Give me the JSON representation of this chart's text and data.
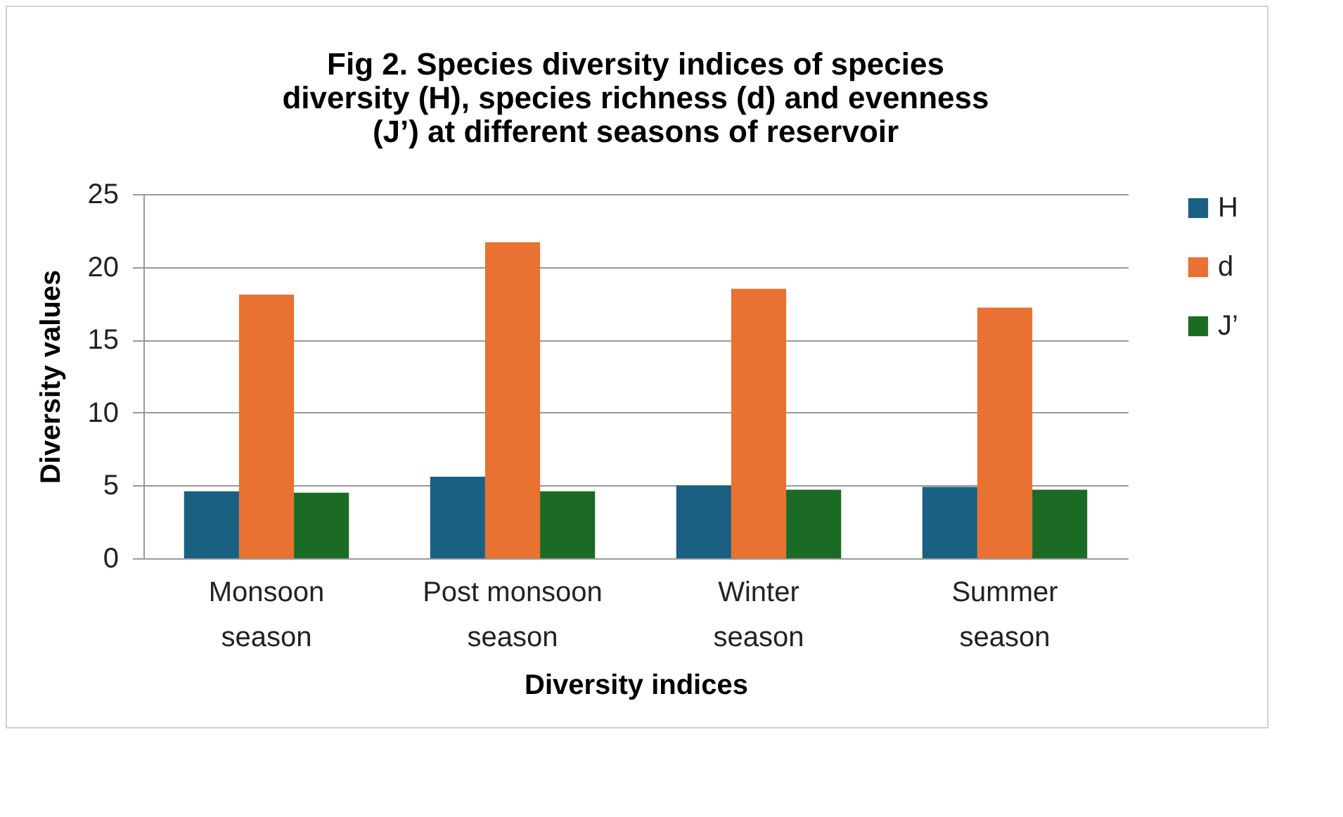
{
  "chart_data": {
    "type": "bar",
    "title": "Fig 2. Species diversity indices of species diversity (H), species richness (d) and evenness (J’) at different seasons of reservoir",
    "xlabel": "Diversity indices",
    "ylabel": "Diversity values",
    "categories": [
      "Monsoon season",
      "Post monsoon season",
      "Winter season",
      "Summer season"
    ],
    "series": [
      {
        "name": "H",
        "color": "#196083",
        "values": [
          4.6,
          5.6,
          5.0,
          4.9
        ]
      },
      {
        "name": "d",
        "color": "#e97132",
        "values": [
          18.1,
          21.7,
          18.5,
          17.2
        ]
      },
      {
        "name": "J’",
        "color": "#1b6b25",
        "values": [
          4.5,
          4.6,
          4.7,
          4.7
        ]
      }
    ],
    "ylim": [
      0,
      25
    ],
    "yticks": [
      0,
      5,
      10,
      15,
      20,
      25
    ],
    "grid": "y",
    "legend": "right"
  }
}
